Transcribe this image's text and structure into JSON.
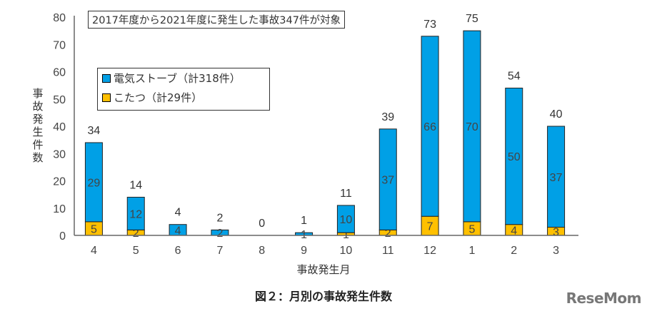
{
  "chart_data": {
    "type": "bar",
    "stacked": true,
    "title": "図２：月別の事故発生件数",
    "note": "2017年度から2021年度に発生した事故347件が対象",
    "xlabel": "事故発生月",
    "ylabel": "事故発生件数",
    "ylim": [
      0,
      80
    ],
    "yticks": [
      0,
      10,
      20,
      30,
      40,
      50,
      60,
      70,
      80
    ],
    "categories": [
      "4",
      "5",
      "6",
      "7",
      "8",
      "9",
      "10",
      "11",
      "12",
      "1",
      "2",
      "3"
    ],
    "series": [
      {
        "name": "こたつ（計29件）",
        "color": "#ffc000",
        "values": [
          5,
          2,
          0,
          0,
          0,
          0,
          1,
          2,
          7,
          5,
          4,
          3
        ]
      },
      {
        "name": "電気ストーブ（計318件）",
        "color": "#00a0e6",
        "values": [
          29,
          12,
          4,
          2,
          0,
          1,
          10,
          37,
          66,
          70,
          50,
          37
        ]
      }
    ],
    "totals": [
      34,
      14,
      4,
      2,
      0,
      1,
      11,
      39,
      73,
      75,
      54,
      40
    ],
    "legend_position": "top-left"
  },
  "logo": "ReseMom"
}
